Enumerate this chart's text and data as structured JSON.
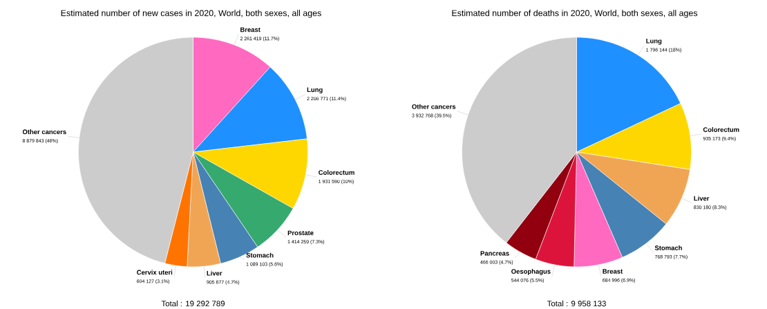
{
  "chart_data": [
    {
      "type": "pie",
      "title": "Estimated number of new cases in 2020, World, both sexes, all ages",
      "categories": [
        "Breast",
        "Lung",
        "Colorectum",
        "Prostate",
        "Stomach",
        "Liver",
        "Cervix uteri",
        "Other cancers"
      ],
      "values": [
        2261419,
        2206771,
        1931590,
        1414259,
        1089103,
        905677,
        604127,
        8879843
      ],
      "value_labels": [
        "2 261 419 (11.7%)",
        "2 206 771 (11.4%)",
        "1 931 590 (10%)",
        "1 414 259 (7.3%)",
        "1 089 103 (5.6%)",
        "905 677 (4.7%)",
        "604 127 (3.1%)",
        "8 879 843 (46%)"
      ],
      "colors": [
        "#ff69c0",
        "#1e90ff",
        "#ffd700",
        "#36a96e",
        "#4682b4",
        "#f0a555",
        "#ff7400",
        "#cccccc"
      ],
      "annotations": [
        "Total : 19 292 789"
      ]
    },
    {
      "type": "pie",
      "title": "Estimated number of deaths in 2020, World, both sexes, all ages",
      "categories": [
        "Lung",
        "Colorectum",
        "Liver",
        "Stomach",
        "Breast",
        "Oesophagus",
        "Pancreas",
        "Other cancers"
      ],
      "values": [
        1796144,
        935173,
        830180,
        768793,
        684996,
        544076,
        466003,
        3932768
      ],
      "value_labels": [
        "1 796 144 (18%)",
        "935 173 (9.4%)",
        "830 180 (8.3%)",
        "768 793 (7.7%)",
        "684 996 (6.9%)",
        "544 076 (5.5%)",
        "466 003 (4.7%)",
        "3 932 768 (39.5%)"
      ],
      "colors": [
        "#1e90ff",
        "#ffd700",
        "#f0a555",
        "#4682b4",
        "#ff69c0",
        "#dc143c",
        "#920010",
        "#cccccc"
      ],
      "annotations": [
        "Total : 9 958 133"
      ]
    }
  ]
}
